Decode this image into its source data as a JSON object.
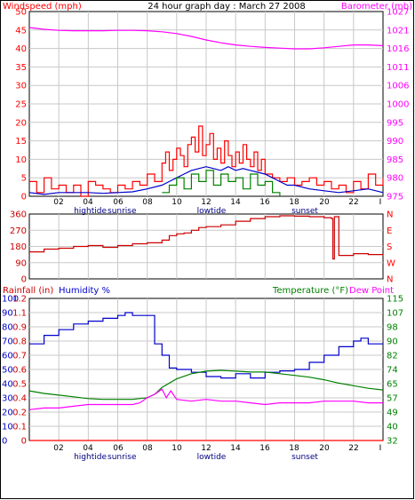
{
  "title": "24 hour graph day : March 27 2008",
  "colors": {
    "red": "#ff0000",
    "blue": "#0000cc",
    "green": "#008000",
    "magenta": "#ff00ff",
    "darkred": "#cc0000",
    "grid": "#c8c8c8",
    "frame": "#000000"
  },
  "time_axis": {
    "ticks": [
      "02",
      "04",
      "06",
      "08",
      "10",
      "12",
      "14",
      "16",
      "18",
      "20",
      "22",
      "I"
    ],
    "events": [
      "hightide",
      "sunrise",
      "lowtide",
      "sunset"
    ]
  },
  "chart_data": [
    {
      "type": "line",
      "title": "24 hour graph day : March 27 2008",
      "x_unit": "hour",
      "xlim": [
        0,
        24
      ],
      "y_left": {
        "label": "Windspeed (mph)",
        "ylim": [
          0,
          50
        ],
        "ticks": [
          "0",
          "5",
          "10",
          "15",
          "20",
          "25",
          "30",
          "35",
          "40",
          "45",
          "50"
        ]
      },
      "y_right": {
        "label": "Barometer (mb)",
        "ylim": [
          975,
          1027
        ],
        "ticks": [
          "975",
          "980",
          "985",
          "990",
          "995",
          "1000",
          "1006",
          "1011",
          "1016",
          "1021",
          "1027"
        ]
      },
      "series": [
        {
          "name": "Windspeed (mph)",
          "axis": "left",
          "color": "#ff0000",
          "style": "step",
          "x": [
            0,
            0.5,
            1,
            1.5,
            2,
            2.5,
            3,
            3.5,
            4,
            4.5,
            5,
            5.5,
            6,
            6.5,
            7,
            7.5,
            8,
            8.5,
            9,
            9.25,
            9.5,
            9.75,
            10,
            10.25,
            10.5,
            10.75,
            11,
            11.25,
            11.5,
            11.75,
            12,
            12.25,
            12.5,
            12.75,
            13,
            13.25,
            13.5,
            13.75,
            14,
            14.25,
            14.5,
            14.75,
            15,
            15.25,
            15.5,
            15.75,
            16,
            16.5,
            17,
            17.5,
            18,
            18.5,
            19,
            19.5,
            20,
            20.5,
            21,
            21.5,
            22,
            22.5,
            23,
            23.5,
            24
          ],
          "values": [
            4,
            1,
            5,
            2,
            3,
            1,
            3,
            0,
            4,
            3,
            2,
            1,
            3,
            2,
            4,
            3,
            6,
            4,
            9,
            12,
            7,
            10,
            13,
            11,
            8,
            14,
            16,
            12,
            19,
            11,
            14,
            17,
            10,
            13,
            9,
            15,
            11,
            8,
            12,
            9,
            14,
            10,
            8,
            12,
            7,
            10,
            6,
            5,
            4,
            5,
            3,
            4,
            5,
            3,
            4,
            2,
            3,
            1,
            4,
            2,
            6,
            3,
            5
          ]
        },
        {
          "name": "Wind average",
          "axis": "left",
          "color": "#0000cc",
          "style": "line",
          "x": [
            0,
            1,
            2,
            3,
            4,
            5,
            6,
            7,
            8,
            9,
            9.5,
            10,
            10.5,
            11,
            11.5,
            12,
            12.5,
            13,
            13.5,
            14,
            14.5,
            15,
            15.5,
            16,
            16.5,
            17,
            17.5,
            18,
            19,
            20,
            21,
            22,
            23,
            24
          ],
          "values": [
            1,
            0.5,
            1,
            1,
            1,
            0.8,
            1,
            1.2,
            2,
            3,
            4,
            5,
            6,
            7,
            7.5,
            8,
            7.5,
            7,
            8,
            7,
            7.5,
            7,
            6.5,
            6,
            5,
            4,
            3,
            3,
            2,
            1.5,
            1,
            1.5,
            2,
            1
          ]
        },
        {
          "name": "Wind gust",
          "axis": "left",
          "color": "#008000",
          "style": "step",
          "x": [
            9,
            9.5,
            10,
            10.5,
            11,
            11.5,
            12,
            12.5,
            13,
            13.5,
            14,
            14.5,
            15,
            15.5,
            16,
            16.5,
            17
          ],
          "values": [
            1,
            3,
            5,
            2,
            6,
            4,
            7,
            3,
            6,
            4,
            5,
            2,
            6,
            3,
            4,
            1,
            0
          ]
        },
        {
          "name": "Barometer (mb)",
          "axis": "right",
          "color": "#ff00ff",
          "style": "line",
          "x": [
            0,
            1,
            2,
            3,
            4,
            5,
            6,
            7,
            8,
            9,
            10,
            11,
            12,
            13,
            14,
            15,
            16,
            17,
            18,
            19,
            20,
            21,
            22,
            23,
            24
          ],
          "values": [
            1022.5,
            1022,
            1021.7,
            1021.6,
            1021.6,
            1021.6,
            1021.7,
            1021.7,
            1021.6,
            1021.3,
            1020.8,
            1020,
            1019,
            1018.2,
            1017.6,
            1017.2,
            1016.9,
            1016.7,
            1016.5,
            1016.5,
            1016.8,
            1017.2,
            1017.6,
            1017.6,
            1017.4
          ]
        }
      ]
    },
    {
      "type": "line",
      "x_unit": "hour",
      "xlim": [
        0,
        24
      ],
      "y_left": {
        "label": "",
        "ylim": [
          0,
          360
        ],
        "ticks": [
          "0",
          "90",
          "180",
          "270",
          "360"
        ]
      },
      "y_right": {
        "label": "",
        "ticks": [
          "N",
          "W",
          "S",
          "E",
          "N"
        ]
      },
      "series": [
        {
          "name": "Wind direction",
          "axis": "left",
          "color": "#cc0000",
          "style": "step",
          "x": [
            0,
            1,
            2,
            3,
            4,
            5,
            6,
            7,
            8,
            9,
            9.5,
            10,
            10.5,
            11,
            11.5,
            12,
            13,
            14,
            15,
            16,
            17,
            18,
            19,
            20,
            20.5,
            20.6,
            20.7,
            21,
            22,
            23,
            24
          ],
          "values": [
            150,
            165,
            170,
            180,
            185,
            175,
            185,
            195,
            200,
            215,
            240,
            250,
            255,
            270,
            285,
            290,
            300,
            320,
            335,
            345,
            350,
            348,
            345,
            340,
            335,
            110,
            345,
            130,
            140,
            135,
            130
          ]
        }
      ]
    },
    {
      "type": "line",
      "x_unit": "hour",
      "xlim": [
        0,
        24
      ],
      "legend": [
        "Rainfall (in)",
        "Humidity %",
        "Temperature (°F)",
        "Dew Point"
      ],
      "y_left_humidity": {
        "label": "Humidity %",
        "ylim": [
          0,
          100
        ],
        "ticks": [
          "0",
          "10",
          "20",
          "30",
          "40",
          "50",
          "60",
          "70",
          "80",
          "90",
          "100"
        ]
      },
      "y_left_rain": {
        "label": "Rainfall (in)",
        "ylim": [
          0,
          1.2
        ],
        "ticks": [
          "0",
          "0.1",
          "0.2",
          "0.4",
          "0.5",
          "0.6",
          "0.7",
          "0.8",
          "0.9",
          "1.1",
          "1.2"
        ]
      },
      "y_right": {
        "label": "Temperature (°F)",
        "ylim": [
          32,
          115
        ],
        "ticks": [
          "32",
          "40",
          "49",
          "57",
          "65",
          "74",
          "82",
          "90",
          "98",
          "107",
          "115"
        ]
      },
      "series": [
        {
          "name": "Humidity %",
          "axis": "left_humidity",
          "color": "#0000cc",
          "style": "step",
          "x": [
            0,
            1,
            2,
            3,
            4,
            5,
            6,
            6.5,
            7,
            8,
            8.5,
            9,
            9.5,
            10,
            11,
            11.5,
            12,
            13,
            14,
            15,
            16,
            17,
            18,
            19,
            20,
            21,
            22,
            22.5,
            23,
            24
          ],
          "values": [
            68,
            74,
            78,
            82,
            84,
            86,
            88,
            90,
            88,
            88,
            68,
            60,
            51,
            50,
            48,
            48,
            45,
            44,
            47,
            44,
            48,
            49,
            50,
            55,
            60,
            66,
            70,
            72,
            68,
            68
          ]
        },
        {
          "name": "Temperature (°F)",
          "axis": "right",
          "color": "#008000",
          "style": "line",
          "x": [
            0,
            1,
            2,
            3,
            4,
            5,
            6,
            7,
            8,
            8.5,
            9,
            10,
            11,
            12,
            13,
            14,
            15,
            16,
            17,
            18,
            19,
            20,
            21,
            22,
            23,
            24
          ],
          "values": [
            61,
            59.5,
            58.5,
            57.5,
            56.5,
            56,
            56,
            56,
            57,
            59,
            63,
            68,
            71,
            72.5,
            73,
            72.5,
            72,
            72,
            71,
            70,
            69,
            67.5,
            65.5,
            64,
            62.5,
            61.5
          ]
        },
        {
          "name": "Dew Point",
          "axis": "right",
          "color": "#ff00ff",
          "style": "line",
          "x": [
            0,
            1,
            2,
            3,
            4,
            5,
            6,
            7,
            7.5,
            8,
            8.5,
            9,
            9.3,
            9.6,
            10,
            11,
            12,
            13,
            14,
            15,
            16,
            17,
            18,
            19,
            20,
            21,
            22,
            23,
            24
          ],
          "values": [
            50,
            51,
            51,
            52,
            53,
            53,
            53,
            53,
            54,
            57,
            59,
            62,
            57,
            61,
            56,
            55,
            56,
            55,
            55,
            54,
            53,
            54,
            54,
            54,
            55,
            55,
            55,
            54,
            54
          ]
        },
        {
          "name": "Rainfall (in)",
          "axis": "left_rain",
          "color": "#ff0000",
          "style": "line",
          "x": [
            0,
            24
          ],
          "values": [
            0,
            0
          ]
        }
      ]
    }
  ]
}
